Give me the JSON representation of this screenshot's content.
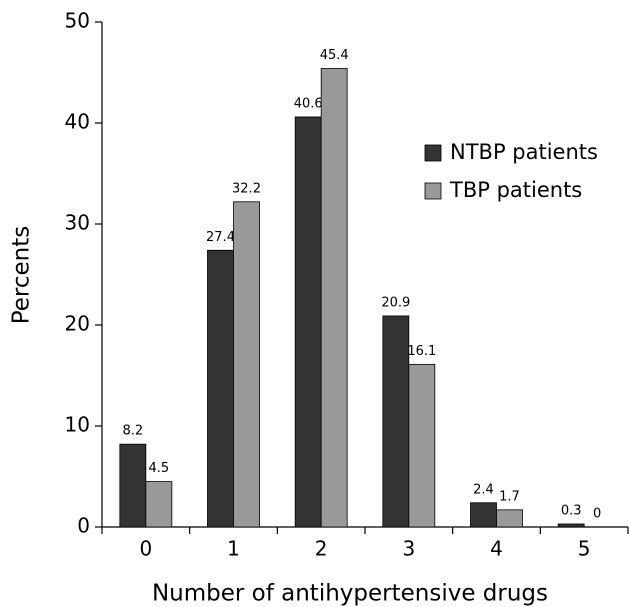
{
  "chart_data": {
    "type": "bar",
    "x_label": "Number of antihypertensive drugs",
    "y_label": "Percents",
    "categories": [
      "0",
      "1",
      "2",
      "3",
      "4",
      "5"
    ],
    "series": [
      {
        "name": "NTBP patients",
        "color": "#333333",
        "values": [
          8.2,
          27.4,
          40.6,
          20.9,
          2.4,
          0.3
        ]
      },
      {
        "name": "TBP patients",
        "color": "#999999",
        "values": [
          4.5,
          32.2,
          45.4,
          16.1,
          1.7,
          0
        ]
      }
    ],
    "ylim": [
      0,
      50
    ],
    "yticks": [
      0,
      10,
      20,
      30,
      40,
      50
    ],
    "grid": false,
    "legend": "right"
  }
}
